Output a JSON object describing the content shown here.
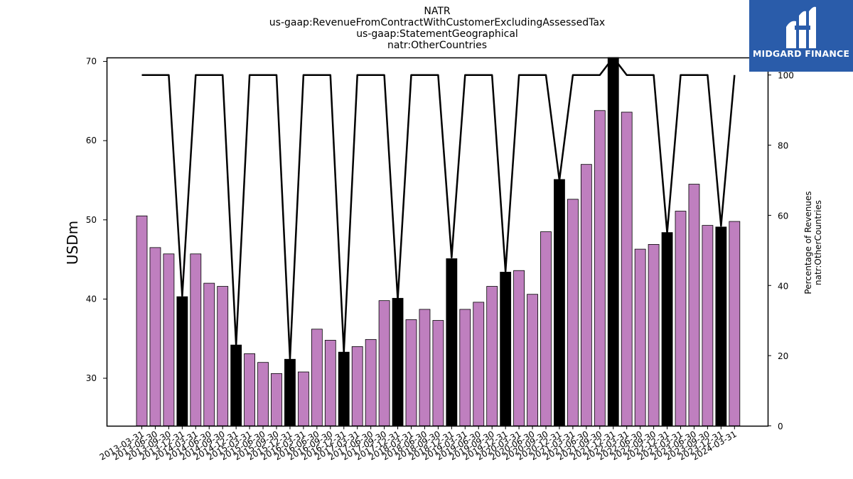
{
  "header": {
    "title_lines": [
      "NATR",
      "us-gaap:RevenueFromContractWithCustomerExcludingAssessedTax",
      "us-gaap:StatementGeographical",
      "natr:OtherCountries"
    ]
  },
  "logo": {
    "text": "MIDGARD FINANCE",
    "color": "#2a5caa"
  },
  "chart_data": {
    "type": "bar",
    "categories": [
      "2013-03-31",
      "2013-06-30",
      "2013-09-30",
      "2013-12-31",
      "2014-03-31",
      "2014-06-30",
      "2014-09-30",
      "2014-12-31",
      "2015-03-31",
      "2015-06-30",
      "2015-09-30",
      "2015-12-31",
      "2016-03-31",
      "2016-06-30",
      "2016-09-30",
      "2016-12-31",
      "2017-03-31",
      "2017-06-30",
      "2017-09-30",
      "2017-12-31",
      "2018-03-31",
      "2018-06-30",
      "2018-09-30",
      "2018-12-31",
      "2019-03-31",
      "2019-06-30",
      "2019-09-30",
      "2019-12-31",
      "2020-03-31",
      "2020-06-30",
      "2020-09-30",
      "2020-12-31",
      "2021-03-31",
      "2021-06-30",
      "2021-09-30",
      "2021-12-31",
      "2022-03-31",
      "2022-06-30",
      "2022-09-30",
      "2022-12-31",
      "2023-03-31",
      "2023-06-30",
      "2023-09-30",
      "2023-12-31",
      "2024-03-31"
    ],
    "series": [
      {
        "values": [
          50.5,
          46.5,
          45.7,
          40.3,
          45.7,
          42.0,
          41.6,
          34.2,
          33.1,
          32.0,
          30.6,
          32.4,
          30.8,
          36.2,
          34.8,
          33.3,
          34.0,
          34.9,
          39.8,
          40.1,
          37.4,
          38.7,
          37.3,
          45.1,
          38.7,
          39.6,
          41.6,
          43.4,
          43.6,
          40.6,
          48.5,
          55.1,
          52.6,
          57.0,
          63.8,
          70.5,
          63.6,
          46.3,
          46.9,
          48.4,
          51.1,
          54.5,
          49.3,
          49.1,
          49.8
        ],
        "colors": [
          "#bf7fbf",
          "#bf7fbf",
          "#bf7fbf",
          "#000000",
          "#bf7fbf",
          "#bf7fbf",
          "#bf7fbf",
          "#000000",
          "#bf7fbf",
          "#bf7fbf",
          "#bf7fbf",
          "#000000",
          "#bf7fbf",
          "#bf7fbf",
          "#bf7fbf",
          "#000000",
          "#bf7fbf",
          "#bf7fbf",
          "#bf7fbf",
          "#000000",
          "#bf7fbf",
          "#bf7fbf",
          "#bf7fbf",
          "#000000",
          "#bf7fbf",
          "#bf7fbf",
          "#bf7fbf",
          "#000000",
          "#bf7fbf",
          "#bf7fbf",
          "#bf7fbf",
          "#000000",
          "#bf7fbf",
          "#bf7fbf",
          "#bf7fbf",
          "#000000",
          "#bf7fbf",
          "#bf7fbf",
          "#bf7fbf",
          "#000000",
          "#bf7fbf",
          "#bf7fbf",
          "#bf7fbf",
          "#000000",
          "#bf7fbf"
        ]
      },
      {
        "axis": "right",
        "type": "line",
        "color": "#000000",
        "values": [
          100,
          100,
          100,
          37,
          100,
          100,
          100,
          23,
          100,
          100,
          100,
          19,
          100,
          100,
          100,
          21,
          100,
          100,
          100,
          36,
          100,
          100,
          100,
          48,
          100,
          100,
          100,
          44,
          100,
          100,
          100,
          70,
          100,
          100,
          100,
          105,
          100,
          100,
          100,
          55,
          100,
          100,
          100,
          57,
          100
        ]
      }
    ],
    "xlabel": "",
    "ylabel": "USDm",
    "y2label": "Percentage of Revenues\nnatr:OtherCountries",
    "ylim": [
      24,
      70.5
    ],
    "y2lim": [
      0,
      105
    ],
    "yticks": [
      30,
      40,
      50,
      60,
      70
    ],
    "y2ticks": [
      0,
      20,
      40,
      60,
      80,
      100
    ],
    "grid": false,
    "legend": "none"
  }
}
